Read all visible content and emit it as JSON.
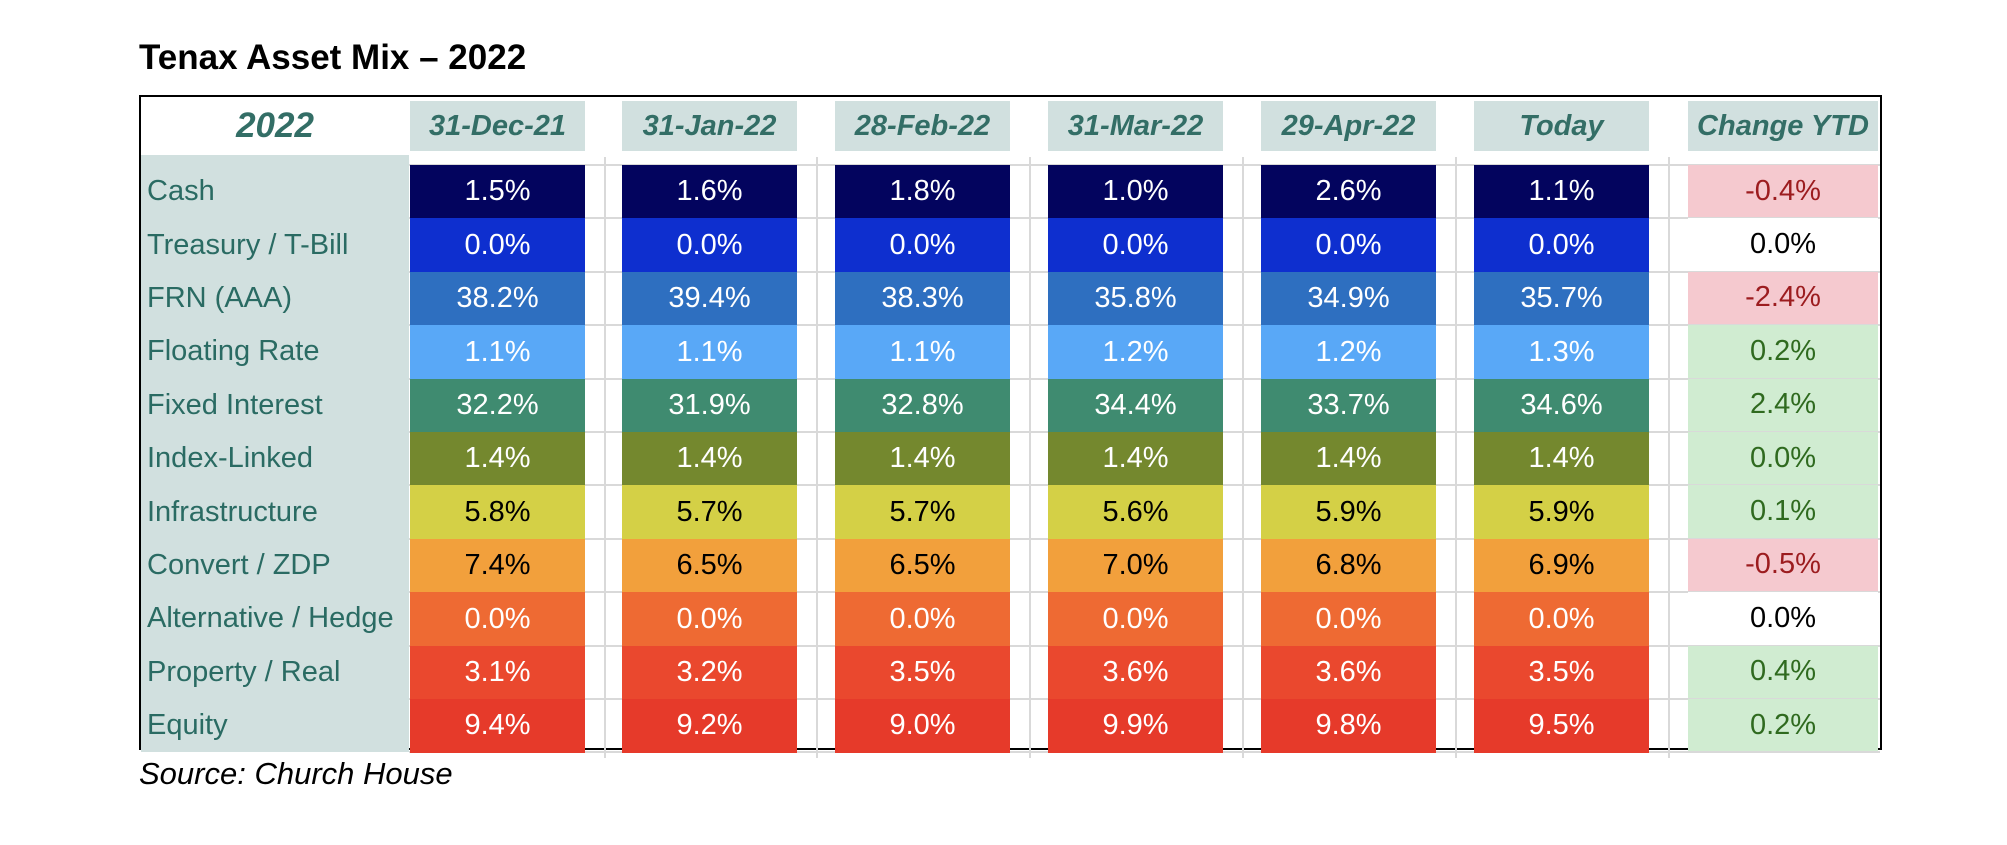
{
  "title": "Tenax Asset Mix – 2022",
  "source": "Source: Church House",
  "chart_data": {
    "type": "table",
    "corner_label": "2022",
    "columns": [
      "31-Dec-21",
      "31-Jan-22",
      "28-Feb-22",
      "31-Mar-22",
      "29-Apr-22",
      "Today"
    ],
    "change_header": "Change YTD",
    "rows": [
      {
        "label": "Cash",
        "values": [
          "1.5%",
          "1.6%",
          "1.8%",
          "1.0%",
          "2.6%",
          "1.1%"
        ],
        "change": "-0.4%",
        "color": "#03045e",
        "text_color": "#ffffff"
      },
      {
        "label": "Treasury / T-Bill",
        "values": [
          "0.0%",
          "0.0%",
          "0.0%",
          "0.0%",
          "0.0%",
          "0.0%"
        ],
        "change": "0.0%",
        "color": "#0e2fcf",
        "text_color": "#ffffff"
      },
      {
        "label": "FRN (AAA)",
        "values": [
          "38.2%",
          "39.4%",
          "38.3%",
          "35.8%",
          "34.9%",
          "35.7%"
        ],
        "change": "-2.4%",
        "color": "#2e6fc0",
        "text_color": "#ffffff"
      },
      {
        "label": "Floating Rate",
        "values": [
          "1.1%",
          "1.1%",
          "1.1%",
          "1.2%",
          "1.2%",
          "1.3%"
        ],
        "change": "0.2%",
        "color": "#59a8f7",
        "text_color": "#ffffff"
      },
      {
        "label": "Fixed Interest",
        "values": [
          "32.2%",
          "31.9%",
          "32.8%",
          "34.4%",
          "33.7%",
          "34.6%"
        ],
        "change": "2.4%",
        "color": "#3f8b70",
        "text_color": "#ffffff"
      },
      {
        "label": "Index-Linked",
        "values": [
          "1.4%",
          "1.4%",
          "1.4%",
          "1.4%",
          "1.4%",
          "1.4%"
        ],
        "change": "0.0%",
        "color": "#74882e",
        "text_color": "#ffffff"
      },
      {
        "label": "Infrastructure",
        "values": [
          "5.8%",
          "5.7%",
          "5.7%",
          "5.6%",
          "5.9%",
          "5.9%"
        ],
        "change": "0.1%",
        "color": "#d4d046",
        "text_color": "#000000"
      },
      {
        "label": "Convert / ZDP",
        "values": [
          "7.4%",
          "6.5%",
          "6.5%",
          "7.0%",
          "6.8%",
          "6.9%"
        ],
        "change": "-0.5%",
        "color": "#f2a03c",
        "text_color": "#000000"
      },
      {
        "label": "Alternative / Hedge",
        "values": [
          "0.0%",
          "0.0%",
          "0.0%",
          "0.0%",
          "0.0%",
          "0.0%"
        ],
        "change": "0.0%",
        "color": "#ee6a33",
        "text_color": "#ffffff"
      },
      {
        "label": "Property / Real",
        "values": [
          "3.1%",
          "3.2%",
          "3.5%",
          "3.6%",
          "3.6%",
          "3.5%"
        ],
        "change": "0.4%",
        "color": "#ea482e",
        "text_color": "#ffffff"
      },
      {
        "label": "Equity",
        "values": [
          "9.4%",
          "9.2%",
          "9.0%",
          "9.9%",
          "9.8%",
          "9.5%"
        ],
        "change": "0.2%",
        "color": "#e63a2a",
        "text_color": "#ffffff"
      }
    ],
    "change_styles": {
      "negative": {
        "bg": "#f5c9cf",
        "fg": "#9c1c1f"
      },
      "positive": {
        "bg": "#d0ecd1",
        "fg": "#2f6a1f"
      },
      "zero_green": {
        "bg": "#d0ecd1",
        "fg": "#2f6a1f"
      },
      "zero_plain": {
        "bg": "#ffffff",
        "fg": "#000000"
      }
    },
    "change_kinds": [
      "negative",
      "zero_plain",
      "negative",
      "positive",
      "positive",
      "zero_green",
      "positive",
      "negative",
      "zero_plain",
      "positive",
      "positive"
    ]
  }
}
